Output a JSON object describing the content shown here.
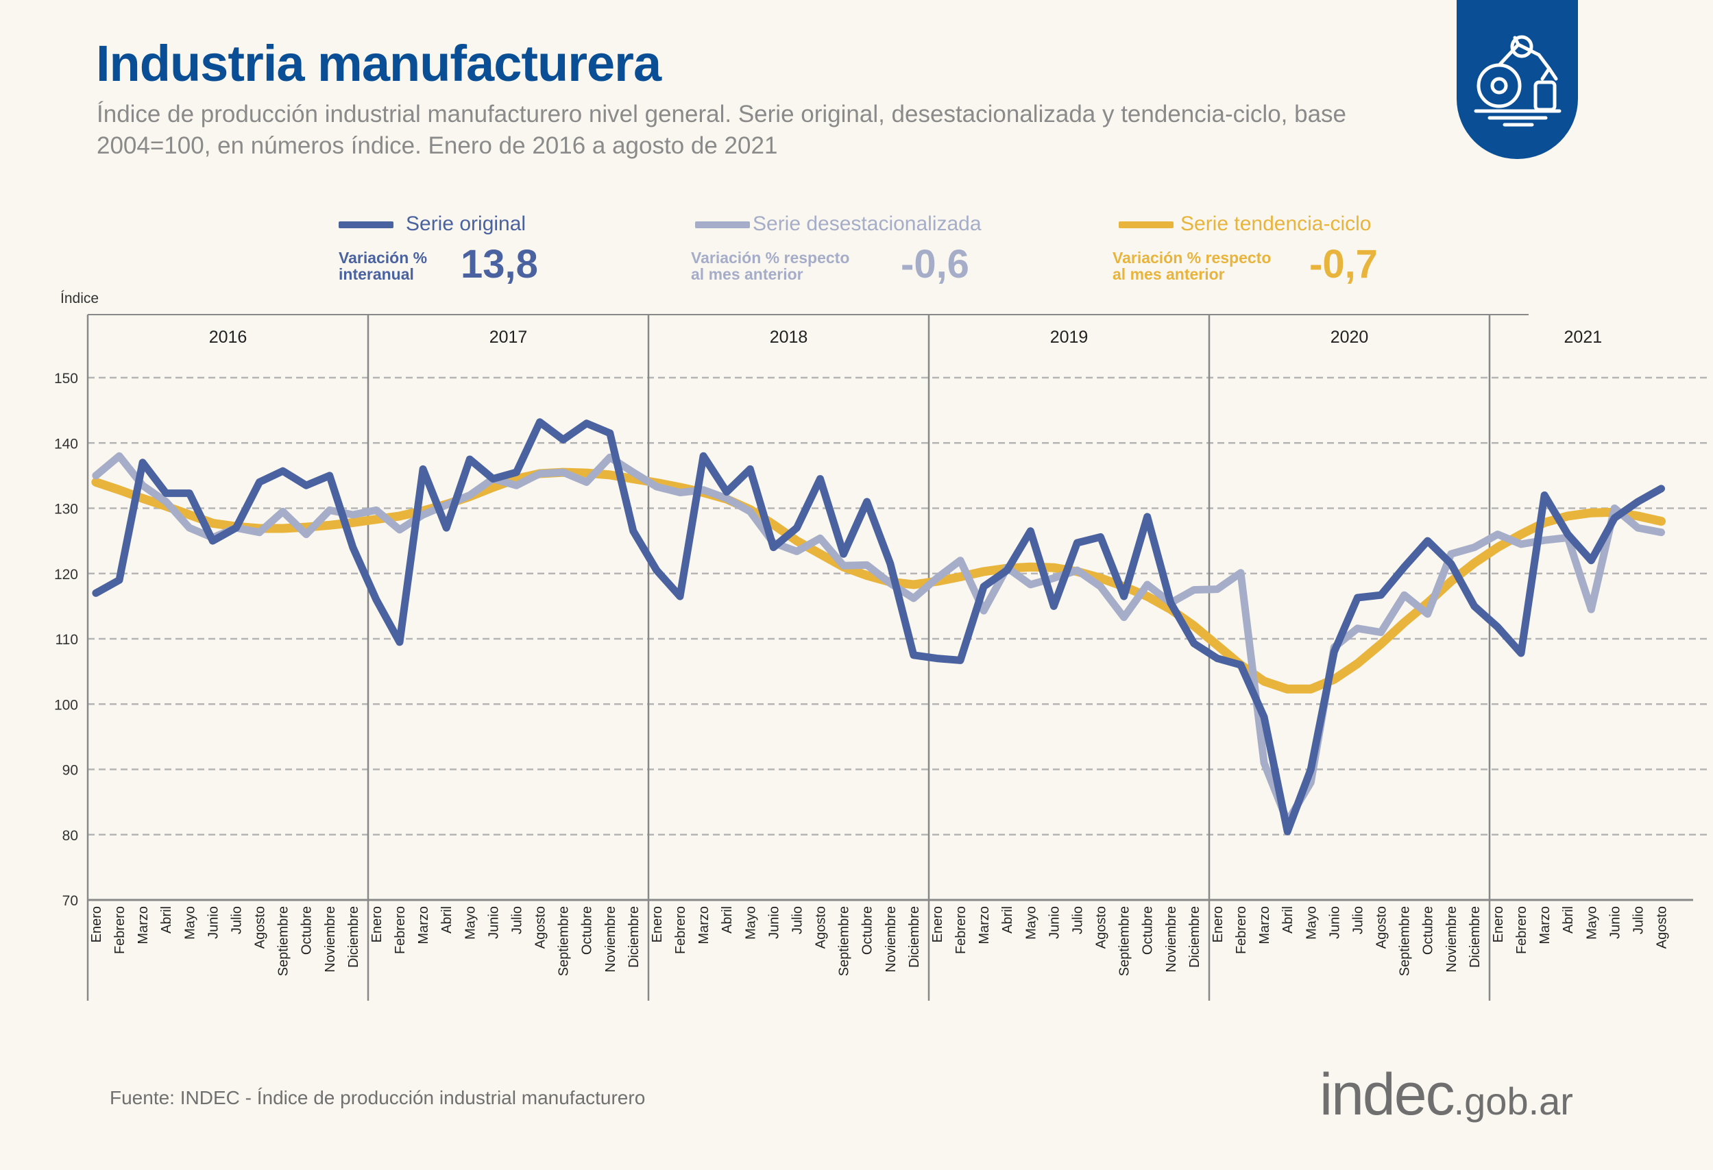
{
  "header": {
    "title": "Industria manufacturera",
    "subtitle": "Índice de producción industrial manufacturero nivel general. Serie original, desestacionalizada y tendencia-ciclo, base 2004=100, en números índice. Enero de 2016 a agosto de 2021",
    "badge_icon": "robot-arm-icon"
  },
  "legend": [
    {
      "name": "Serie original",
      "metric_label_1": "Variación %",
      "metric_label_2": "interanual",
      "value": "13,8",
      "color": "#4a62a0"
    },
    {
      "name": "Serie desestacionalizada",
      "metric_label_1": "Variación % respecto",
      "metric_label_2": "al mes anterior",
      "value": "-0,6",
      "color": "#a6adc9"
    },
    {
      "name": "Serie tendencia-ciclo",
      "metric_label_1": "Variación % respecto",
      "metric_label_2": "al mes anterior",
      "value": "-0,7",
      "color": "#e8b43c"
    }
  ],
  "footer": {
    "source": "Fuente: INDEC - Índice de producción industrial manufacturero",
    "logo_main": "indec",
    "logo_suffix": ".gob.ar"
  },
  "chart_data": {
    "type": "line",
    "ylabel": "Índice",
    "ylim": [
      70,
      150
    ],
    "yticks": [
      70,
      80,
      90,
      100,
      110,
      120,
      130,
      140,
      150
    ],
    "grid": true,
    "years": [
      "2016",
      "2017",
      "2018",
      "2019",
      "2020",
      "2021"
    ],
    "months": [
      "Enero",
      "Febrero",
      "Marzo",
      "Abril",
      "Mayo",
      "Junio",
      "Julio",
      "Agosto",
      "Septiembre",
      "Octubre",
      "Noviembre",
      "Diciembre"
    ],
    "series": [
      {
        "name": "Serie original",
        "color": "#4a62a0",
        "values": [
          117,
          119,
          137,
          132.3,
          132.3,
          125,
          127,
          134,
          135.7,
          133.5,
          135,
          124,
          116,
          109.5,
          136,
          127,
          137.5,
          134.5,
          135.5,
          143.2,
          140.5,
          143,
          141.5,
          126.5,
          120.5,
          116.5,
          138,
          132.5,
          136,
          124,
          127,
          134.5,
          123,
          131,
          121.5,
          107.5,
          107,
          106.7,
          118,
          120.5,
          126.5,
          115,
          124.7,
          125.6,
          116.5,
          128.7,
          115.5,
          109.3,
          107,
          106,
          98,
          80.5,
          90,
          108,
          116.3,
          116.7,
          121,
          125,
          121.5,
          115,
          111.8,
          107.8,
          132,
          126,
          122,
          128.5,
          131,
          133
        ]
      },
      {
        "name": "Serie desestacionalizada",
        "color": "#a6adc9",
        "values": [
          135,
          138,
          133.5,
          131,
          127,
          125.5,
          127,
          126.3,
          129.5,
          126,
          129.7,
          129,
          129.7,
          126.7,
          129,
          130.5,
          132,
          134.5,
          133.5,
          135.3,
          135.5,
          134,
          137.8,
          135.5,
          133.3,
          132.4,
          132.8,
          131.5,
          129.5,
          124.7,
          123.4,
          125.4,
          121.2,
          121.3,
          118.5,
          116.2,
          119.3,
          122,
          114.3,
          120.9,
          118.3,
          119.3,
          120.5,
          118,
          113.3,
          118.3,
          115.5,
          117.5,
          117.6,
          120.1,
          91,
          82,
          88,
          108.7,
          111.6,
          111,
          116.7,
          113.8,
          123,
          124,
          126,
          124.5,
          125.1,
          125.5,
          114.5,
          130,
          127,
          126.3
        ]
      },
      {
        "name": "Serie tendencia-ciclo",
        "color": "#e8b43c",
        "values": [
          134,
          132.8,
          131.5,
          130.3,
          129,
          127.7,
          127.2,
          126.9,
          126.9,
          127.1,
          127.4,
          127.8,
          128.3,
          128.8,
          129.6,
          130.6,
          131.8,
          133.2,
          134.5,
          135.3,
          135.5,
          135.4,
          135.1,
          134.5,
          133.9,
          133.2,
          132.4,
          131.4,
          129.8,
          127.5,
          125,
          123,
          121,
          119.7,
          118.7,
          118.3,
          118.8,
          119.5,
          120.3,
          120.8,
          121,
          120.9,
          120.3,
          119.3,
          118,
          116.5,
          114.5,
          112,
          109,
          106,
          103.5,
          102.3,
          102.3,
          103.8,
          106.2,
          109.2,
          112.5,
          115.5,
          118.8,
          121.6,
          124,
          126,
          127.8,
          128.8,
          129.3,
          129.4,
          128.8,
          128
        ]
      }
    ]
  }
}
